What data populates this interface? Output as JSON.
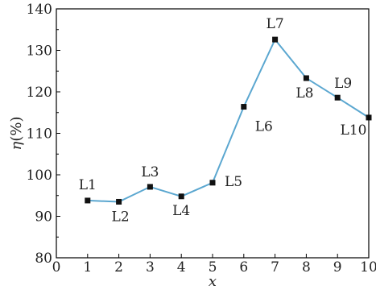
{
  "chart_data": {
    "type": "line",
    "title": "",
    "xlabel": "x",
    "ylabel_symbol": "η",
    "ylabel_unit": "(%)",
    "xlim": [
      0,
      10
    ],
    "ylim": [
      80,
      140
    ],
    "x_ticks": [
      "0",
      "1",
      "2",
      "3",
      "4",
      "5",
      "6",
      "7",
      "8",
      "9",
      "10"
    ],
    "y_ticks": [
      "80",
      "90",
      "100",
      "110",
      "120",
      "130",
      "140"
    ],
    "grid": false,
    "line_color": "#5ba7d0",
    "marker_color": "#111111",
    "points": [
      {
        "label": "L1",
        "x": 1,
        "y": 93.8
      },
      {
        "label": "L2",
        "x": 2,
        "y": 93.5
      },
      {
        "label": "L3",
        "x": 3,
        "y": 97.1
      },
      {
        "label": "L4",
        "x": 4,
        "y": 94.8
      },
      {
        "label": "L5",
        "x": 5,
        "y": 98.1
      },
      {
        "label": "L6",
        "x": 6,
        "y": 116.4
      },
      {
        "label": "L7",
        "x": 7,
        "y": 132.6
      },
      {
        "label": "L8",
        "x": 8,
        "y": 123.3
      },
      {
        "label": "L9",
        "x": 9,
        "y": 118.6
      },
      {
        "label": "L10",
        "x": 10,
        "y": 113.8
      }
    ]
  }
}
